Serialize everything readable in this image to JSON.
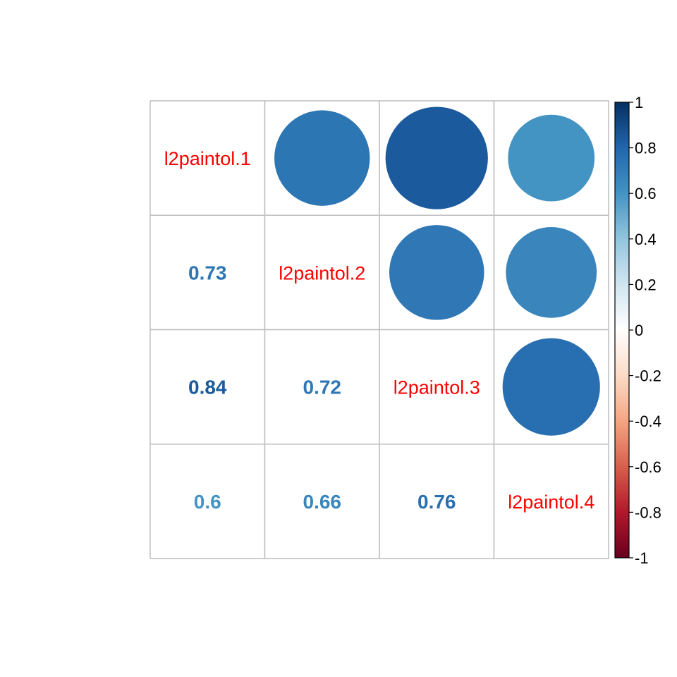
{
  "chart_data": {
    "type": "heatmap",
    "variables": [
      "l2paintol.1",
      "l2paintol.2",
      "l2paintol.3",
      "l2paintol.4"
    ],
    "matrix": [
      [
        1.0,
        0.73,
        0.84,
        0.6
      ],
      [
        0.73,
        1.0,
        0.72,
        0.66
      ],
      [
        0.84,
        0.72,
        1.0,
        0.76
      ],
      [
        0.6,
        0.66,
        0.76,
        1.0
      ]
    ],
    "number_labels": {
      "1_0": "0.73",
      "2_0": "0.84",
      "2_1": "0.72",
      "3_0": "0.6",
      "3_1": "0.66",
      "3_2": "0.76"
    },
    "upper_method": "circle",
    "lower_method": "number",
    "diagonal": "variable names",
    "grid": true,
    "colorbar": {
      "placement": "right",
      "range": [
        -1,
        1
      ],
      "ticks": [
        "1",
        "0.8",
        "0.6",
        "0.4",
        "0.2",
        "0",
        "-0.2",
        "-0.4",
        "-0.6",
        "-0.8",
        "-1"
      ]
    },
    "colors": {
      "label_text": "#FF0000",
      "grid": "#BEBEBE",
      "palette": [
        "#67001F",
        "#B2182B",
        "#D6604D",
        "#F4A582",
        "#FDDBC7",
        "#FFFFFF",
        "#D1E5F0",
        "#92C5DE",
        "#4393C3",
        "#2166AC",
        "#053061"
      ]
    }
  }
}
